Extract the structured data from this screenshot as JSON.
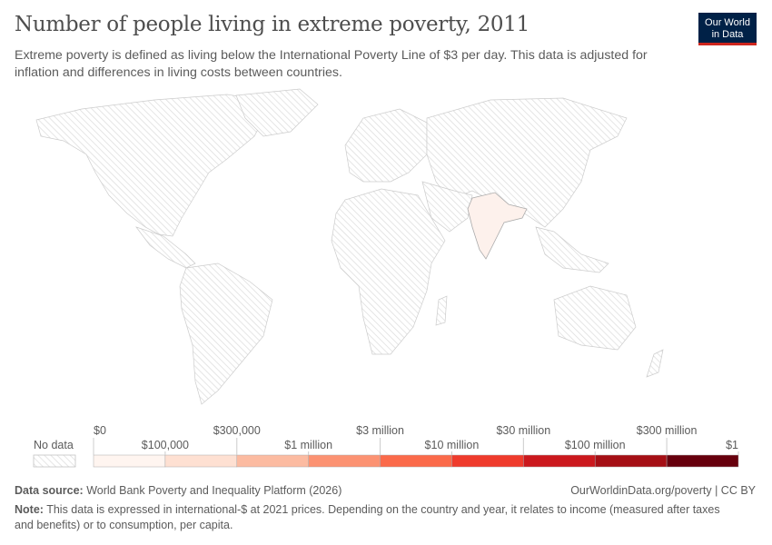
{
  "title": "Number of people living in extreme poverty, 2011",
  "subtitle": "Extreme poverty is defined as living below the International Poverty Line of $3 per day. This data is adjusted for inflation and differences in living costs between countries.",
  "logo": {
    "line1": "Our World",
    "line2": "in Data"
  },
  "legend": {
    "no_data": "No data",
    "bins": [
      "$0",
      "$100,000",
      "$300,000",
      "$1 million",
      "$3 million",
      "$10 million",
      "$30 million",
      "$100 million",
      "$300 million",
      "$1"
    ],
    "colors": [
      "#fff5f0",
      "#fee0d2",
      "#fcbba1",
      "#fc9272",
      "#fb6a4a",
      "#ef3b2c",
      "#cb181d",
      "#a50f15",
      "#67000d"
    ]
  },
  "map": {
    "highlighted": [
      {
        "country": "India",
        "color": "#fdf1ec"
      }
    ],
    "no_data_pattern": "hatched-gray"
  },
  "footer": {
    "source_label": "Data source:",
    "source": "World Bank Poverty and Inequality Platform (2026)",
    "url": "OurWorldinData.org/poverty | CC BY",
    "note_label": "Note:",
    "note": "This data is expressed in international-$ at 2021 prices. Depending on the country and year, it relates to income (measured after taxes and benefits) or to consumption, per capita."
  }
}
